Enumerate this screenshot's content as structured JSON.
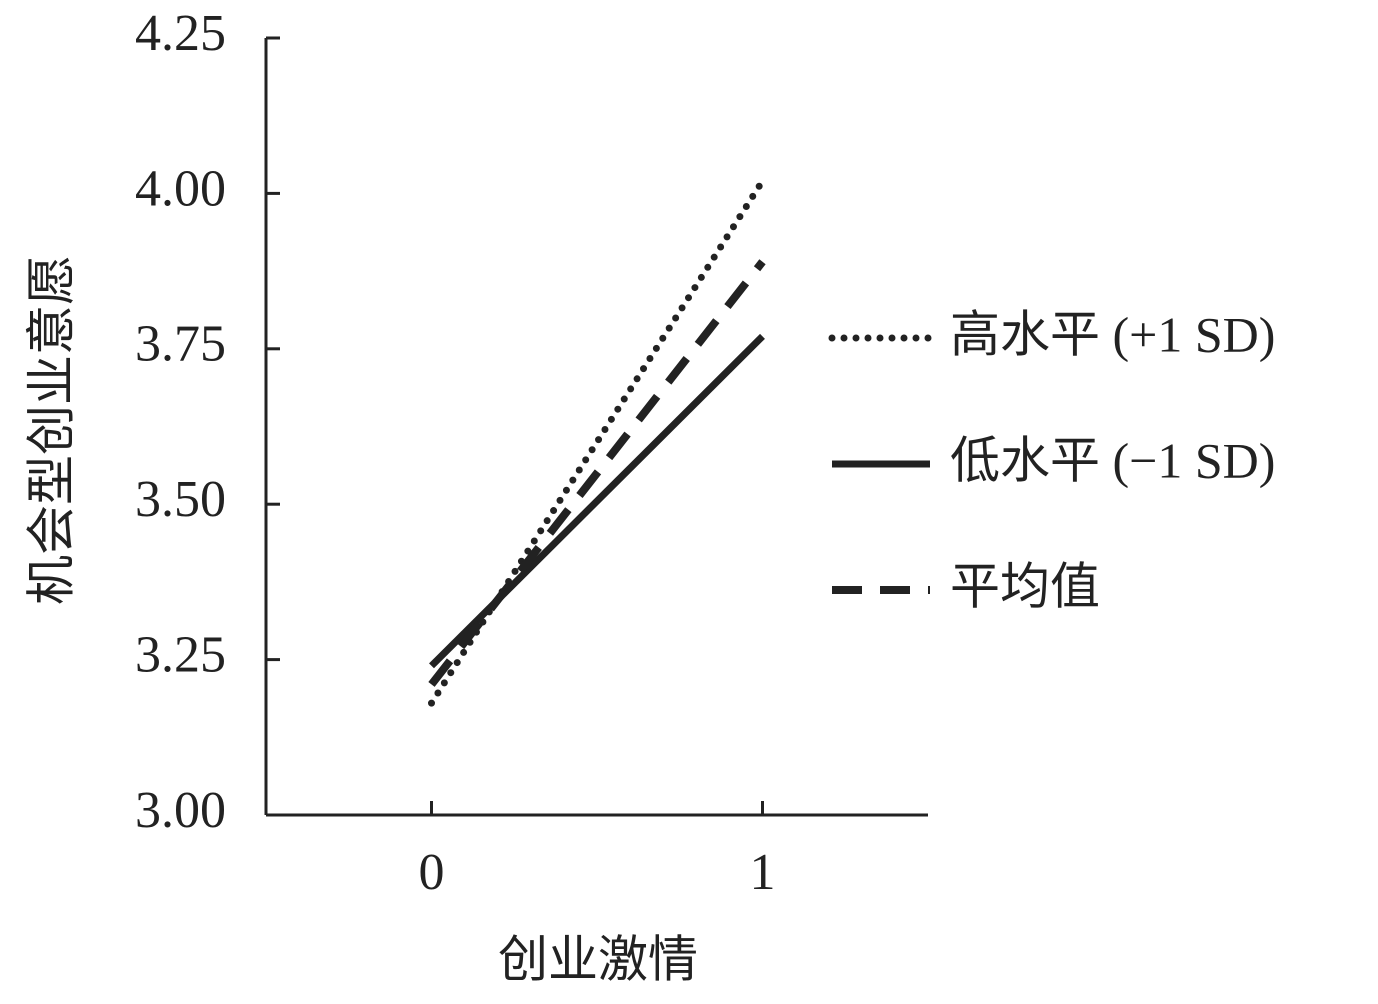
{
  "chart_data": {
    "type": "line",
    "x_label": "创业激情",
    "y_label": "机会型创业意愿",
    "x": [
      0,
      1
    ],
    "xlim": [
      -0.5,
      1.5
    ],
    "xticks": [
      0,
      1
    ],
    "ylim": [
      3,
      4.25
    ],
    "yticks": [
      {
        "value": 3,
        "label": "3.00"
      },
      3.25,
      {
        "value": 3.5,
        "label": "3.50"
      },
      3.75,
      {
        "value": 4,
        "label": "4.00"
      },
      4.25
    ],
    "series": [
      {
        "name": "高水平 (+1 SD)",
        "color": "#222222",
        "style": "dotted",
        "values": [
          3.18,
          4.02
        ]
      },
      {
        "name": "低水平 (−1 SD)",
        "color": "#222222",
        "style": "solid",
        "values": [
          3.24,
          3.77
        ]
      },
      {
        "name": "平均值",
        "color": "#222222",
        "style": "dashed",
        "values": [
          3.21,
          3.89
        ]
      }
    ],
    "legend": "right"
  }
}
